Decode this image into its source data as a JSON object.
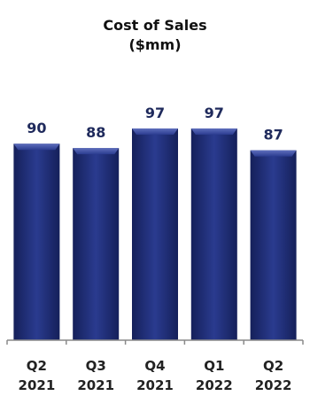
{
  "chart_data": {
    "type": "bar",
    "title": "Cost of Sales",
    "subtitle": "($mm)",
    "categories": [
      {
        "quarter": "Q2",
        "year": "2021"
      },
      {
        "quarter": "Q3",
        "year": "2021"
      },
      {
        "quarter": "Q4",
        "year": "2021"
      },
      {
        "quarter": "Q1",
        "year": "2022"
      },
      {
        "quarter": "Q2",
        "year": "2022"
      }
    ],
    "values": [
      90,
      88,
      97,
      97,
      87
    ],
    "value_labels": [
      "90",
      "88",
      "97",
      "97",
      "87"
    ],
    "ylim": [
      0,
      97
    ],
    "grid": false,
    "colors": {
      "bar": "#1f2f7a",
      "bar_dark": "#15205a",
      "bar_light": "#4a5aa8",
      "label": "#1f2a5c"
    }
  }
}
